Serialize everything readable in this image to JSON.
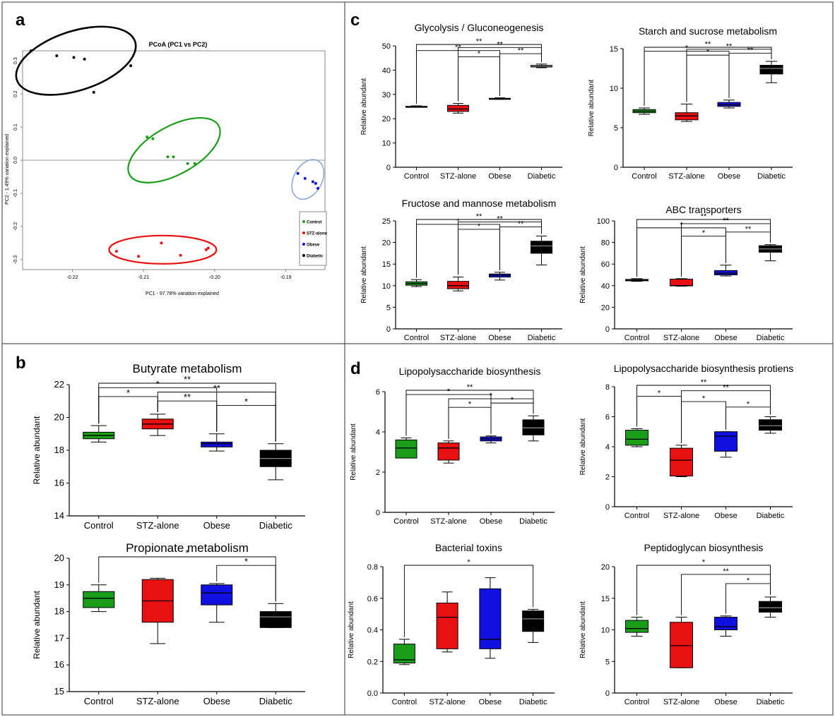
{
  "colors": {
    "Control": "#1a9e1a",
    "STZ-alone": "#e81010",
    "Obese": "#1010e0",
    "Diabetic": "#000000",
    "grey": "#b8b8b8"
  },
  "panel_letters": [
    "a",
    "b",
    "c",
    "d"
  ],
  "chart_data": [
    {
      "id": "a",
      "type": "scatter",
      "title": "PCoA (PC1 vs PC2)",
      "xlabel": "PC1 - 97.78% variation explained",
      "ylabel": "PC2 - 1.49% variation explained",
      "xticks": [
        "-0.22",
        "-0.21",
        "-0.20",
        "-0.19"
      ],
      "yticks": [
        "0.3",
        "0.2",
        "0.1",
        "0.0",
        "-0.1",
        "-0.2",
        "-0.3"
      ],
      "xlim": [
        -0.227,
        -0.1845
      ],
      "ylim": [
        -0.33,
        0.33
      ],
      "legend": [
        "Control",
        "STZ-alone",
        "Obese",
        "Diabetic"
      ],
      "legend_position": "right",
      "series": [
        {
          "name": "Control",
          "points": [
            [
              -0.2095,
              0.07
            ],
            [
              -0.2087,
              0.065
            ],
            [
              -0.2066,
              0.01
            ],
            [
              -0.2058,
              0.01
            ],
            [
              -0.2038,
              -0.01
            ],
            [
              -0.2028,
              -0.01
            ]
          ]
        },
        {
          "name": "STZ-alone",
          "points": [
            [
              -0.2138,
              -0.275
            ],
            [
              -0.2107,
              -0.29
            ],
            [
              -0.2075,
              -0.25
            ],
            [
              -0.2048,
              -0.287
            ],
            [
              -0.2012,
              -0.27
            ],
            [
              -0.2009,
              -0.265
            ]
          ]
        },
        {
          "name": "Obese",
          "points": [
            [
              -0.1883,
              -0.04
            ],
            [
              -0.1873,
              -0.055
            ],
            [
              -0.1862,
              -0.065
            ],
            [
              -0.1858,
              -0.07
            ],
            [
              -0.1855,
              -0.085
            ]
          ]
        },
        {
          "name": "Diabetic",
          "points": [
            [
              -0.2258,
              0.33
            ],
            [
              -0.2222,
              0.315
            ],
            [
              -0.2198,
              0.31
            ],
            [
              -0.2183,
              0.305
            ],
            [
              -0.217,
              0.205
            ],
            [
              -0.2118,
              0.285
            ]
          ]
        }
      ]
    },
    {
      "id": "b1",
      "type": "box",
      "title": "Butyrate metabolism",
      "ylabel": "Relative abundant",
      "categories": [
        "Control",
        "STZ-alone",
        "Obese",
        "Diabetic"
      ],
      "ylim": [
        14,
        22
      ],
      "yticks": [
        "14",
        "16",
        "18",
        "20",
        "22"
      ],
      "boxes": [
        [
          18.5,
          18.7,
          18.9,
          19.1,
          19.5
        ],
        [
          18.9,
          19.3,
          19.6,
          19.9,
          20.2
        ],
        [
          17.95,
          18.2,
          18.4,
          18.5,
          19.0
        ],
        [
          16.2,
          17.0,
          17.5,
          18.0,
          18.4
        ]
      ],
      "significance": [
        [
          "Control",
          "Diabetic",
          "**"
        ],
        [
          "Control",
          "Obese",
          "*"
        ],
        [
          "Control",
          "STZ-alone",
          "*"
        ],
        [
          "STZ-alone",
          "Diabetic",
          "**"
        ],
        [
          "STZ-alone",
          "Obese",
          "**"
        ],
        [
          "Obese",
          "Diabetic",
          "*"
        ]
      ]
    },
    {
      "id": "b2",
      "type": "box",
      "title": "Propionate metabolism",
      "ylabel": "Relative abundant",
      "categories": [
        "Control",
        "STZ-alone",
        "Obese",
        "Diabetic"
      ],
      "ylim": [
        15,
        20
      ],
      "yticks": [
        "15",
        "16",
        "17",
        "18",
        "19",
        "20"
      ],
      "boxes": [
        [
          18.0,
          18.15,
          18.5,
          18.75,
          19.0
        ],
        [
          16.8,
          17.6,
          18.4,
          19.2,
          19.25
        ],
        [
          17.6,
          18.25,
          18.7,
          19.0,
          19.05
        ],
        [
          17.4,
          17.4,
          17.8,
          18.0,
          18.3
        ]
      ],
      "significance": [
        [
          "Control",
          "Diabetic",
          "*"
        ],
        [
          "Obese",
          "Diabetic",
          "*"
        ]
      ]
    },
    {
      "id": "c1",
      "type": "box",
      "title": "Glycolysis / Gluconeogenesis",
      "ylabel": "Relative abundant",
      "categories": [
        "Control",
        "STZ-alone",
        "Obese",
        "Diabetic"
      ],
      "ylim": [
        0,
        50
      ],
      "yticks": [
        "0",
        "10",
        "20",
        "30",
        "40",
        "50"
      ],
      "boxes": [
        [
          24.8,
          24.9,
          25.0,
          25.1,
          25.3
        ],
        [
          22.3,
          23.0,
          24.0,
          25.5,
          26.3
        ],
        [
          28.0,
          28.1,
          28.2,
          28.4,
          28.6
        ],
        [
          41.0,
          41.3,
          41.7,
          42.0,
          42.5
        ]
      ],
      "significance": [
        [
          "Control",
          "Diabetic",
          "**"
        ],
        [
          "STZ-alone",
          "Diabetic",
          "**"
        ],
        [
          "Obese",
          "Diabetic",
          "**"
        ],
        [
          "Control",
          "Obese",
          "**"
        ],
        [
          "STZ-alone",
          "Obese",
          "*"
        ]
      ]
    },
    {
      "id": "c2",
      "type": "box",
      "title": "Starch and sucrose metabolism",
      "ylabel": "Relative abundant",
      "categories": [
        "Control",
        "STZ-alone",
        "Obese",
        "Diabetic"
      ],
      "ylim": [
        0,
        15
      ],
      "yticks": [
        "0",
        "5",
        "10",
        "15"
      ],
      "boxes": [
        [
          6.7,
          6.9,
          7.1,
          7.3,
          7.5
        ],
        [
          5.8,
          6.0,
          6.5,
          6.9,
          8.0
        ],
        [
          7.5,
          7.7,
          7.9,
          8.2,
          8.5
        ],
        [
          10.7,
          11.8,
          12.5,
          12.9,
          13.4
        ]
      ],
      "significance": [
        [
          "Control",
          "Diabetic",
          "**"
        ],
        [
          "STZ-alone",
          "Diabetic",
          "**"
        ],
        [
          "Obese",
          "Diabetic",
          "**"
        ],
        [
          "Control",
          "Obese",
          "*"
        ],
        [
          "STZ-alone",
          "Obese",
          "*"
        ]
      ]
    },
    {
      "id": "c3",
      "type": "box",
      "title": "Fructose and mannose metabolism",
      "ylabel": "Relative abundant",
      "categories": [
        "Control",
        "STZ-alone",
        "Obese",
        "Diabetic"
      ],
      "ylim": [
        0,
        25
      ],
      "yticks": [
        "0",
        "5",
        "10",
        "15",
        "20",
        "25"
      ],
      "boxes": [
        [
          9.8,
          10.1,
          10.5,
          10.9,
          11.4
        ],
        [
          8.8,
          9.3,
          10.0,
          11.0,
          12.0
        ],
        [
          11.3,
          12.0,
          12.4,
          12.7,
          13.1
        ],
        [
          14.8,
          17.5,
          19.2,
          20.3,
          21.5
        ]
      ],
      "significance": [
        [
          "Control",
          "Diabetic",
          "**"
        ],
        [
          "STZ-alone",
          "Diabetic",
          "**"
        ],
        [
          "Obese",
          "Diabetic",
          "**"
        ],
        [
          "Control",
          "Obese",
          "*"
        ],
        [
          "STZ-alone",
          "Obese",
          "*"
        ]
      ]
    },
    {
      "id": "c4",
      "type": "box",
      "title": "ABC transporters",
      "ylabel": "Relative abundant",
      "categories": [
        "Control",
        "STZ-alone",
        "Obese",
        "Diabetic"
      ],
      "ylim": [
        0,
        100
      ],
      "yticks": [
        "0",
        "20",
        "40",
        "60",
        "80",
        "100"
      ],
      "boxes": [
        [
          44.0,
          44.5,
          45.0,
          45.8,
          46.5
        ],
        [
          39.5,
          39.8,
          40.0,
          46.0,
          46.5
        ],
        [
          49.0,
          50.0,
          51.5,
          54.0,
          59.0
        ],
        [
          63.0,
          71.0,
          74.0,
          77.0,
          78.0
        ]
      ],
      "significance": [
        [
          "Control",
          "Diabetic",
          "**"
        ],
        [
          "STZ-alone",
          "Diabetic",
          "**"
        ],
        [
          "Obese",
          "Diabetic",
          "**"
        ],
        [
          "Control",
          "Obese",
          "*"
        ],
        [
          "STZ-alone",
          "Obese",
          "*"
        ]
      ]
    },
    {
      "id": "d1",
      "type": "box",
      "title": "Lipopolysaccharide biosynthesis",
      "ylabel": "Relative abundant",
      "categories": [
        "Control",
        "STZ-alone",
        "Obese",
        "Diabetic"
      ],
      "ylim": [
        0,
        6
      ],
      "yticks": [
        "0",
        "2",
        "4",
        "6"
      ],
      "boxes": [
        [
          2.7,
          2.7,
          3.2,
          3.6,
          3.7
        ],
        [
          2.45,
          2.6,
          3.2,
          3.45,
          3.55
        ],
        [
          3.45,
          3.55,
          3.65,
          3.75,
          3.8
        ],
        [
          3.55,
          3.85,
          4.2,
          4.6,
          4.8
        ]
      ],
      "significance": [
        [
          "Control",
          "Diabetic",
          "**"
        ],
        [
          "Control",
          "Obese",
          "*"
        ],
        [
          "STZ-alone",
          "Diabetic",
          "*"
        ],
        [
          "Obese",
          "Diabetic",
          "*"
        ],
        [
          "STZ-alone",
          "Obese",
          "*"
        ]
      ]
    },
    {
      "id": "d2",
      "type": "box",
      "title": "Lipopolysaccharide biosynthesis protiens",
      "ylabel": "Relative abundant",
      "categories": [
        "Control",
        "STZ-alone",
        "Obese",
        "Diabetic"
      ],
      "ylim": [
        0,
        8
      ],
      "yticks": [
        "0",
        "2",
        "4",
        "6",
        "8"
      ],
      "boxes": [
        [
          4.0,
          4.1,
          4.5,
          5.1,
          5.2
        ],
        [
          2.0,
          2.05,
          3.1,
          3.9,
          4.1
        ],
        [
          3.3,
          3.7,
          4.7,
          5.0,
          5.0
        ],
        [
          4.9,
          5.1,
          5.4,
          5.8,
          6.0
        ]
      ],
      "significance": [
        [
          "Control",
          "STZ-alone",
          "*"
        ],
        [
          "Control",
          "Diabetic",
          "**"
        ],
        [
          "STZ-alone",
          "Diabetic",
          "**"
        ],
        [
          "STZ-alone",
          "Obese",
          "*"
        ],
        [
          "Obese",
          "Diabetic",
          "*"
        ]
      ]
    },
    {
      "id": "d3",
      "type": "box",
      "title": "Bacterial toxins",
      "ylabel": "Relative abundant",
      "categories": [
        "Control",
        "STZ-alone",
        "Obese",
        "Diabetic"
      ],
      "ylim": [
        0,
        0.8
      ],
      "yticks": [
        "0.0",
        "0.2",
        "0.4",
        "0.6",
        "0.8"
      ],
      "boxes": [
        [
          0.18,
          0.19,
          0.21,
          0.31,
          0.34
        ],
        [
          0.26,
          0.28,
          0.48,
          0.57,
          0.64
        ],
        [
          0.22,
          0.28,
          0.34,
          0.66,
          0.73
        ],
        [
          0.32,
          0.39,
          0.47,
          0.52,
          0.53
        ]
      ],
      "significance": [
        [
          "Control",
          "Diabetic",
          "*"
        ]
      ]
    },
    {
      "id": "d4",
      "type": "box",
      "title": "Peptidoglycan biosynthesis",
      "ylabel": "Relative abundant",
      "categories": [
        "Control",
        "STZ-alone",
        "Obese",
        "Diabetic"
      ],
      "ylim": [
        0,
        20
      ],
      "yticks": [
        "0",
        "5",
        "10",
        "15",
        "20"
      ],
      "boxes": [
        [
          9.0,
          9.6,
          10.2,
          11.5,
          12.0
        ],
        [
          4.0,
          4.0,
          7.5,
          11.2,
          12.0
        ],
        [
          9.0,
          10.0,
          10.5,
          12.0,
          12.2
        ],
        [
          12.0,
          12.8,
          13.5,
          14.5,
          15.2
        ]
      ],
      "significance": [
        [
          "Control",
          "Diabetic",
          "*"
        ],
        [
          "STZ-alone",
          "Diabetic",
          "**"
        ],
        [
          "Obese",
          "Diabetic",
          "*"
        ]
      ]
    }
  ]
}
